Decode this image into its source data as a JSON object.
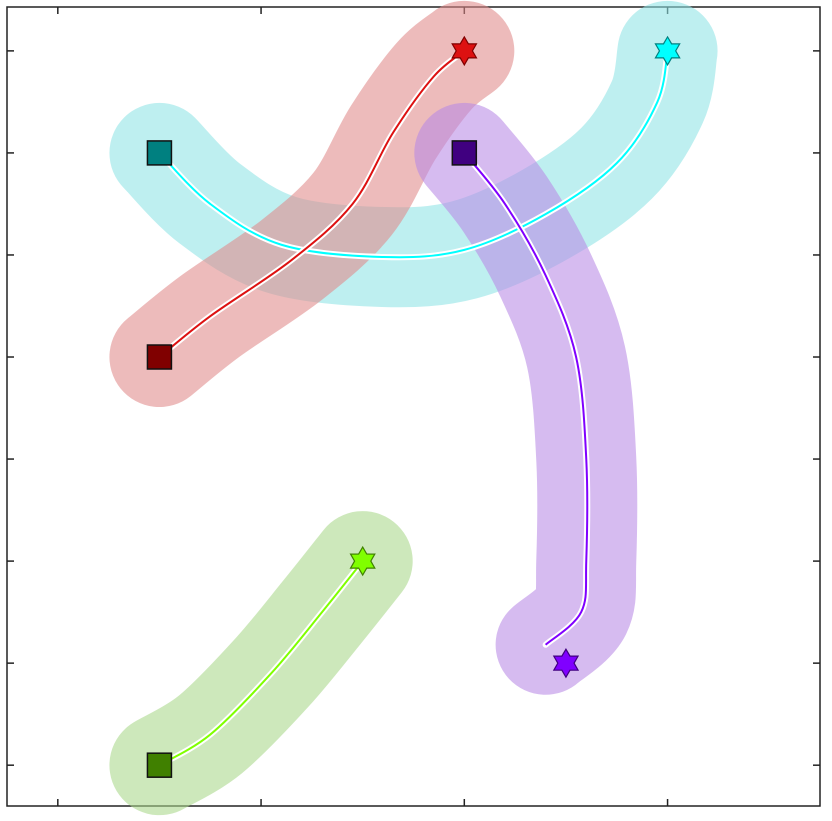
{
  "chart_data": {
    "type": "path",
    "xlim": [
      -0.5,
      7.5
    ],
    "ylim": [
      -0.4,
      7.43
    ],
    "xticks": [
      0,
      2,
      4,
      6
    ],
    "yticks": [
      0,
      1,
      2,
      3,
      4,
      5,
      6,
      7
    ],
    "series": [
      {
        "color": "#00ffff",
        "start_color": "#008080",
        "band_color": "#8fe3e6",
        "x": [
          1,
          1.5,
          2.2,
          3.2,
          4,
          4.8,
          5.5,
          5.9,
          6
        ],
        "y": [
          6,
          5.5,
          5.1,
          4.98,
          5.05,
          5.4,
          5.9,
          6.5,
          7
        ],
        "goal": [
          6,
          7
        ]
      },
      {
        "color": "#dd1111",
        "start_color": "#800000",
        "band_color": "#e08a8a",
        "x": [
          1,
          1.5,
          2.3,
          2.9,
          3.3,
          3.7,
          4
        ],
        "y": [
          4,
          4.4,
          4.95,
          5.5,
          6.2,
          6.75,
          7
        ],
        "goal": [
          4,
          7
        ]
      },
      {
        "color": "#8000ff",
        "start_color": "#400080",
        "band_color": "#b88ae6",
        "x": [
          4,
          4.4,
          4.8,
          5.1,
          5.2,
          5.2,
          5.15,
          4.8
        ],
        "y": [
          6,
          5.5,
          4.8,
          4.0,
          3.0,
          2.0,
          1.5,
          1.18
        ],
        "goal": [
          5,
          1
        ]
      },
      {
        "color": "#80ff00",
        "start_color": "#408000",
        "band_color": "#a8d88a",
        "x": [
          1,
          1.5,
          2.1,
          2.6,
          3
        ],
        "y": [
          0,
          0.3,
          0.9,
          1.5,
          2
        ],
        "goal": [
          3,
          2
        ]
      }
    ]
  }
}
